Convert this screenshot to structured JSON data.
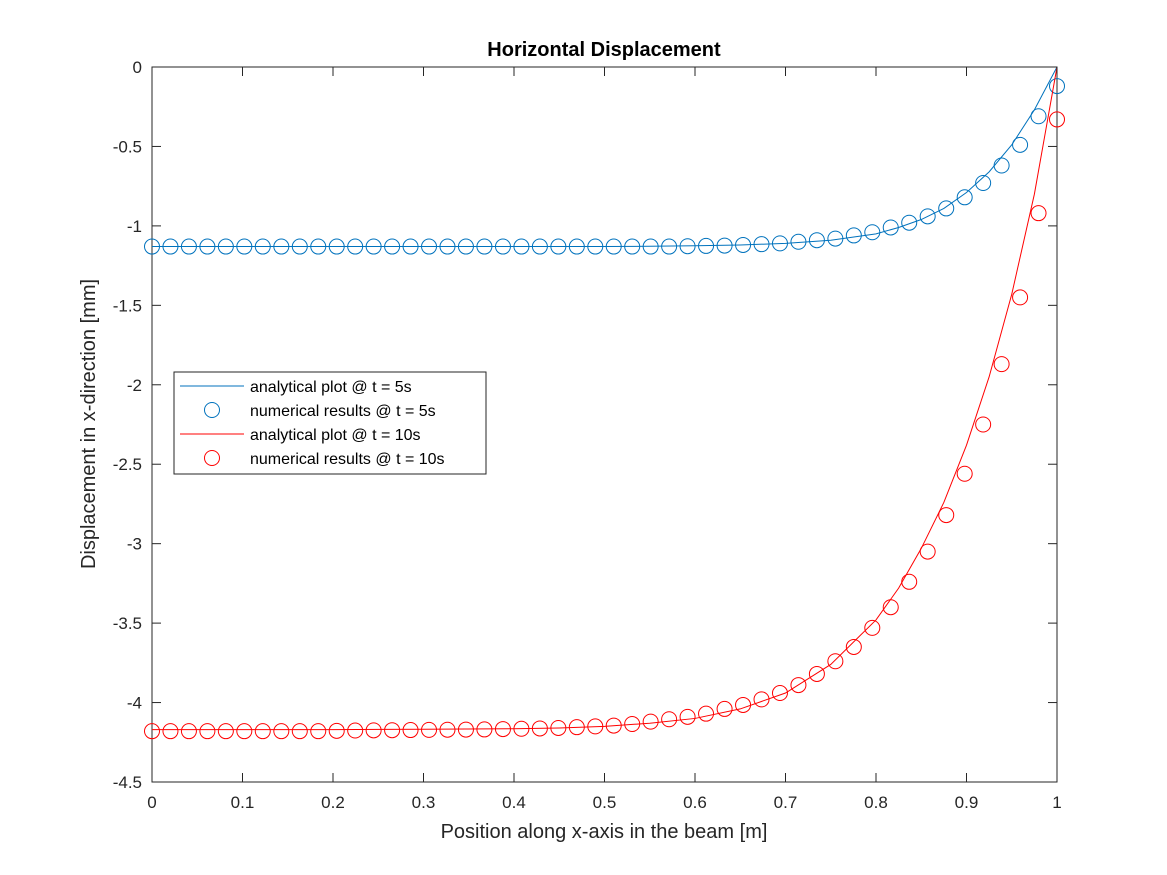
{
  "chart_data": {
    "type": "line",
    "title": "Horizontal Displacement",
    "xlabel": "Position along x-axis in the beam [m]",
    "ylabel": "Displacement in x-direction [mm]",
    "xlim": [
      0,
      1
    ],
    "ylim": [
      -4.5,
      0
    ],
    "xticks": [
      0,
      0.1,
      0.2,
      0.3,
      0.4,
      0.5,
      0.6,
      0.7,
      0.8,
      0.9,
      1
    ],
    "xtick_labels": [
      "0",
      "0.1",
      "0.2",
      "0.3",
      "0.4",
      "0.5",
      "0.6",
      "0.7",
      "0.8",
      "0.9",
      "1"
    ],
    "yticks": [
      0,
      -0.5,
      -1,
      -1.5,
      -2,
      -2.5,
      -3,
      -3.5,
      -4,
      -4.5
    ],
    "ytick_labels": [
      "0",
      "-0.5",
      "-1",
      "-1.5",
      "-2",
      "-2.5",
      "-3",
      "-3.5",
      "-4",
      "-4.5"
    ],
    "grid": false,
    "legend_position": "middle-left",
    "series": [
      {
        "name": "analytical plot @ t = 5s",
        "style": "line",
        "color": "#0072BD",
        "x": [
          0,
          0.1,
          0.2,
          0.3,
          0.4,
          0.5,
          0.55,
          0.6,
          0.65,
          0.7,
          0.75,
          0.8,
          0.825,
          0.85,
          0.875,
          0.9,
          0.925,
          0.95,
          0.975,
          1.0
        ],
        "y": [
          -1.13,
          -1.13,
          -1.13,
          -1.13,
          -1.13,
          -1.13,
          -1.128,
          -1.125,
          -1.12,
          -1.11,
          -1.09,
          -1.05,
          -1.01,
          -0.96,
          -0.89,
          -0.79,
          -0.66,
          -0.49,
          -0.27,
          0
        ]
      },
      {
        "name": "numerical results @ t = 5s",
        "style": "markers",
        "marker": "circle",
        "color": "#0072BD",
        "x": [
          0,
          0.0204,
          0.0408,
          0.0612,
          0.0816,
          0.102,
          0.1224,
          0.1429,
          0.1633,
          0.1837,
          0.2041,
          0.2245,
          0.2449,
          0.2653,
          0.2857,
          0.3061,
          0.3265,
          0.3469,
          0.3673,
          0.3878,
          0.4082,
          0.4286,
          0.449,
          0.4694,
          0.4898,
          0.5102,
          0.5306,
          0.551,
          0.5714,
          0.5918,
          0.6122,
          0.6327,
          0.6531,
          0.6735,
          0.6939,
          0.7143,
          0.7347,
          0.7551,
          0.7755,
          0.7959,
          0.8163,
          0.8367,
          0.8571,
          0.8776,
          0.898,
          0.9184,
          0.9388,
          0.9592,
          0.9796,
          1.0
        ],
        "y": [
          -1.13,
          -1.13,
          -1.13,
          -1.13,
          -1.13,
          -1.13,
          -1.13,
          -1.13,
          -1.13,
          -1.13,
          -1.13,
          -1.13,
          -1.13,
          -1.13,
          -1.13,
          -1.13,
          -1.13,
          -1.13,
          -1.13,
          -1.13,
          -1.13,
          -1.13,
          -1.13,
          -1.13,
          -1.13,
          -1.13,
          -1.13,
          -1.13,
          -1.13,
          -1.128,
          -1.126,
          -1.124,
          -1.12,
          -1.115,
          -1.11,
          -1.1,
          -1.09,
          -1.08,
          -1.06,
          -1.04,
          -1.01,
          -0.98,
          -0.94,
          -0.89,
          -0.82,
          -0.73,
          -0.62,
          -0.49,
          -0.31,
          -0.12
        ]
      },
      {
        "name": "analytical plot @ t = 10s",
        "style": "line",
        "color": "#FF0000",
        "x": [
          0,
          0.1,
          0.2,
          0.3,
          0.4,
          0.45,
          0.5,
          0.55,
          0.6,
          0.65,
          0.7,
          0.75,
          0.8,
          0.825,
          0.85,
          0.875,
          0.9,
          0.925,
          0.95,
          0.975,
          1.0
        ],
        "y": [
          -4.17,
          -4.17,
          -4.17,
          -4.168,
          -4.165,
          -4.16,
          -4.15,
          -4.13,
          -4.1,
          -4.04,
          -3.94,
          -3.76,
          -3.48,
          -3.28,
          -3.03,
          -2.74,
          -2.38,
          -1.95,
          -1.43,
          -0.8,
          0
        ]
      },
      {
        "name": "numerical results @ t = 10s",
        "style": "markers",
        "marker": "circle",
        "color": "#FF0000",
        "x": [
          0,
          0.0204,
          0.0408,
          0.0612,
          0.0816,
          0.102,
          0.1224,
          0.1429,
          0.1633,
          0.1837,
          0.2041,
          0.2245,
          0.2449,
          0.2653,
          0.2857,
          0.3061,
          0.3265,
          0.3469,
          0.3673,
          0.3878,
          0.4082,
          0.4286,
          0.449,
          0.4694,
          0.4898,
          0.5102,
          0.5306,
          0.551,
          0.5714,
          0.5918,
          0.6122,
          0.6327,
          0.6531,
          0.6735,
          0.6939,
          0.7143,
          0.7347,
          0.7551,
          0.7755,
          0.7959,
          0.8163,
          0.8367,
          0.8571,
          0.8776,
          0.898,
          0.9184,
          0.9388,
          0.9592,
          0.9796,
          1.0
        ],
        "y": [
          -4.18,
          -4.18,
          -4.18,
          -4.18,
          -4.18,
          -4.18,
          -4.18,
          -4.18,
          -4.18,
          -4.18,
          -4.178,
          -4.176,
          -4.175,
          -4.174,
          -4.173,
          -4.172,
          -4.171,
          -4.17,
          -4.169,
          -4.167,
          -4.165,
          -4.163,
          -4.16,
          -4.155,
          -4.15,
          -4.145,
          -4.135,
          -4.12,
          -4.105,
          -4.09,
          -4.07,
          -4.04,
          -4.015,
          -3.98,
          -3.94,
          -3.89,
          -3.82,
          -3.74,
          -3.65,
          -3.53,
          -3.4,
          -3.24,
          -3.05,
          -2.82,
          -2.56,
          -2.25,
          -1.87,
          -1.45,
          -0.92,
          -0.33
        ]
      }
    ]
  }
}
